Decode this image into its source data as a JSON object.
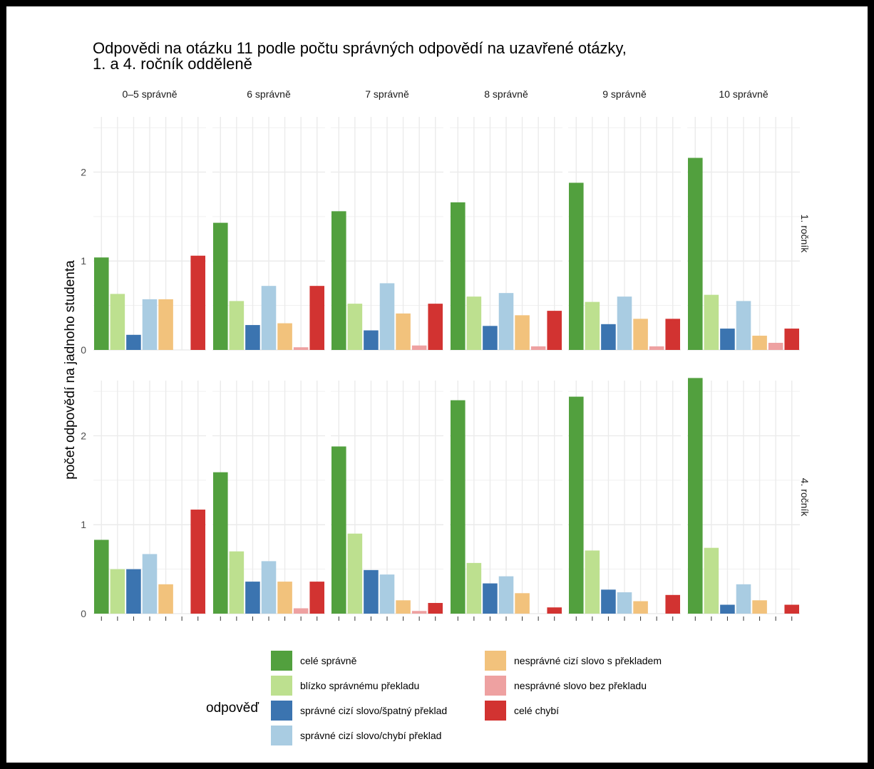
{
  "chart_data": {
    "type": "bar",
    "title_lines": [
      "Odpovědi na otázku 11 podle počtu správných odpovědí na uzavřené otázky,",
      "1. a 4. ročník odděleně"
    ],
    "ylabel": "počet odpovědí na jadnoho studenta",
    "legend_title": "odpověď",
    "legend_placement": "bottom",
    "grid": true,
    "ylim": [
      0,
      2.65
    ],
    "y_ticks": [
      0,
      1,
      2
    ],
    "columns": [
      "0–5 správně",
      "6 správně",
      "7 správně",
      "8 správně",
      "9 správně",
      "10 správně"
    ],
    "rows": [
      "1. ročník",
      "4. ročník"
    ],
    "categories": [
      "celé správně",
      "blízko správnému překladu",
      "správné cizí slovo/špatný překlad",
      "správné cizí slovo/chybí překlad",
      "nesprávné cizí slovo s překladem",
      "nesprávné slovo bez překladu",
      "celé chybí"
    ],
    "colors": [
      "#52a03e",
      "#bde08f",
      "#3b74b0",
      "#a9cce2",
      "#f2c27c",
      "#eea1a1",
      "#d23331"
    ],
    "panels": [
      {
        "row": "1. ročník",
        "column": "0–5 správně",
        "values": [
          1.04,
          0.63,
          0.17,
          0.57,
          0.57,
          0.0,
          1.06
        ]
      },
      {
        "row": "1. ročník",
        "column": "6 správně",
        "values": [
          1.43,
          0.55,
          0.28,
          0.72,
          0.3,
          0.03,
          0.72
        ]
      },
      {
        "row": "1. ročník",
        "column": "7 správně",
        "values": [
          1.56,
          0.52,
          0.22,
          0.75,
          0.41,
          0.05,
          0.52
        ]
      },
      {
        "row": "1. ročník",
        "column": "8 správně",
        "values": [
          1.66,
          0.6,
          0.27,
          0.64,
          0.39,
          0.04,
          0.44
        ]
      },
      {
        "row": "1. ročník",
        "column": "9 správně",
        "values": [
          1.88,
          0.54,
          0.29,
          0.6,
          0.35,
          0.04,
          0.35
        ]
      },
      {
        "row": "1. ročník",
        "column": "10 správně",
        "values": [
          2.16,
          0.62,
          0.24,
          0.55,
          0.16,
          0.08,
          0.24
        ]
      },
      {
        "row": "4. ročník",
        "column": "0–5 správně",
        "values": [
          0.83,
          0.5,
          0.5,
          0.67,
          0.33,
          0.0,
          1.17
        ]
      },
      {
        "row": "4. ročník",
        "column": "6 správně",
        "values": [
          1.59,
          0.7,
          0.36,
          0.59,
          0.36,
          0.06,
          0.36
        ]
      },
      {
        "row": "4. ročník",
        "column": "7 správně",
        "values": [
          1.88,
          0.9,
          0.49,
          0.44,
          0.15,
          0.03,
          0.12
        ]
      },
      {
        "row": "4. ročník",
        "column": "8 správně",
        "values": [
          2.4,
          0.57,
          0.34,
          0.42,
          0.23,
          0.0,
          0.07
        ]
      },
      {
        "row": "4. ročník",
        "column": "9 správně",
        "values": [
          2.44,
          0.71,
          0.27,
          0.24,
          0.14,
          0.0,
          0.21
        ]
      },
      {
        "row": "4. ročník",
        "column": "10 správně",
        "values": [
          2.65,
          0.74,
          0.1,
          0.33,
          0.15,
          0.0,
          0.1
        ]
      }
    ]
  }
}
